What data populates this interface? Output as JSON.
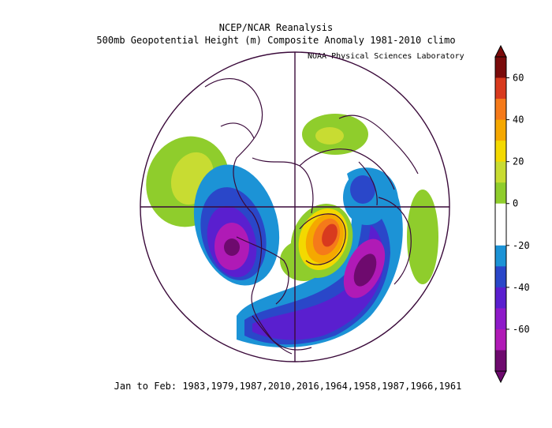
{
  "title": "NCEP/NCAR Reanalysis",
  "subtitle": "500mb Geopotential Height (m) Composite Anomaly 1981-2010 climo",
  "credit": "NOAA Physical Sciences Laboratory",
  "footer": "Jan to Feb: 1983,1979,1987,2010,2016,1964,1958,1987,1966,1961",
  "colorbar": {
    "ticks": [
      "60",
      "40",
      "20",
      "0",
      "-20",
      "-40",
      "-60"
    ],
    "colors": [
      "#7a0b0b",
      "#d83a1e",
      "#f57a1a",
      "#f5a800",
      "#f3d900",
      "#c8dc32",
      "#8fcd2c",
      "#ffffff",
      "#ffffff",
      "#1c93d6",
      "#2a47c9",
      "#5a1fcf",
      "#8e1ac9",
      "#b01ab6",
      "#6e0a6e"
    ]
  }
}
